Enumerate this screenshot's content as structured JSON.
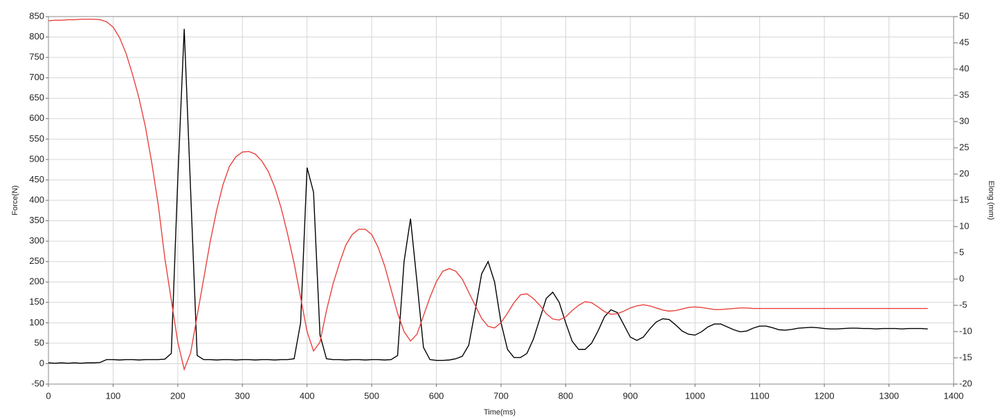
{
  "chart_data": {
    "type": "line",
    "x_label": "Time(ms)",
    "y_label": "Force(N)",
    "y2_label": "Elong (mm)",
    "x": [
      0,
      10,
      20,
      30,
      40,
      50,
      60,
      70,
      80,
      90,
      100,
      110,
      120,
      130,
      140,
      150,
      160,
      170,
      180,
      190,
      200,
      210,
      220,
      230,
      240,
      250,
      260,
      270,
      280,
      290,
      300,
      310,
      320,
      330,
      340,
      350,
      360,
      370,
      380,
      390,
      400,
      410,
      420,
      430,
      440,
      450,
      460,
      470,
      480,
      490,
      500,
      510,
      520,
      530,
      540,
      550,
      560,
      570,
      580,
      590,
      600,
      610,
      620,
      630,
      640,
      650,
      660,
      670,
      680,
      690,
      700,
      710,
      720,
      730,
      740,
      750,
      760,
      770,
      780,
      790,
      800,
      810,
      820,
      830,
      840,
      850,
      860,
      870,
      880,
      890,
      900,
      910,
      920,
      930,
      940,
      950,
      960,
      970,
      980,
      990,
      1000,
      1010,
      1020,
      1030,
      1040,
      1050,
      1060,
      1070,
      1080,
      1090,
      1100,
      1110,
      1120,
      1130,
      1140,
      1150,
      1160,
      1170,
      1180,
      1190,
      1200,
      1210,
      1220,
      1230,
      1240,
      1250,
      1260,
      1270,
      1280,
      1290,
      1300,
      1310,
      1320,
      1330,
      1340,
      1350,
      1360
    ],
    "series": [
      {
        "name": "Force",
        "color": "#000000",
        "axis": "y",
        "values": [
          2,
          1,
          2,
          1,
          2,
          1,
          2,
          2,
          3,
          10,
          10,
          9,
          10,
          10,
          9,
          10,
          10,
          10,
          11,
          25,
          450,
          820,
          420,
          20,
          10,
          10,
          9,
          10,
          10,
          9,
          10,
          10,
          9,
          10,
          10,
          9,
          10,
          10,
          12,
          100,
          480,
          420,
          70,
          12,
          10,
          10,
          9,
          10,
          10,
          9,
          10,
          10,
          9,
          10,
          20,
          250,
          355,
          200,
          40,
          10,
          8,
          8,
          9,
          12,
          18,
          45,
          130,
          220,
          250,
          200,
          100,
          35,
          15,
          15,
          25,
          60,
          110,
          160,
          175,
          150,
          100,
          55,
          35,
          35,
          50,
          80,
          115,
          132,
          125,
          95,
          65,
          57,
          65,
          85,
          102,
          110,
          108,
          95,
          80,
          72,
          70,
          78,
          90,
          97,
          97,
          90,
          83,
          78,
          80,
          87,
          92,
          92,
          88,
          83,
          82,
          84,
          87,
          88,
          89,
          88,
          86,
          85,
          85,
          86,
          87,
          87,
          86,
          86,
          85,
          86,
          86,
          86,
          85,
          86,
          86,
          86,
          85
        ]
      },
      {
        "name": "Elong",
        "color": "#e8413c",
        "axis": "y2",
        "values": [
          49.2,
          49.3,
          49.3,
          49.4,
          49.4,
          49.5,
          49.5,
          49.5,
          49.4,
          49,
          48,
          46,
          43,
          39,
          34.5,
          29,
          22,
          14,
          4,
          -4,
          -12,
          -17.2,
          -14,
          -7,
          0,
          7,
          13,
          18,
          21.5,
          23.3,
          24.2,
          24.3,
          23.8,
          22.5,
          20.5,
          17.5,
          13.5,
          8.5,
          3,
          -3.5,
          -10,
          -13.7,
          -12,
          -6,
          -1,
          3,
          6.5,
          8.5,
          9.5,
          9.5,
          8.5,
          6,
          2.5,
          -2,
          -6.5,
          -10,
          -11.8,
          -10.5,
          -7,
          -3.5,
          -0.5,
          1.5,
          2,
          1.5,
          0,
          -2.5,
          -5,
          -7.5,
          -9,
          -9.3,
          -8.3,
          -6.5,
          -4.5,
          -3,
          -2.8,
          -3.7,
          -5,
          -6.6,
          -7.6,
          -7.8,
          -7.2,
          -6,
          -5,
          -4.3,
          -4.5,
          -5.3,
          -6.2,
          -6.7,
          -6.6,
          -6.1,
          -5.5,
          -5.1,
          -4.9,
          -5.1,
          -5.5,
          -5.9,
          -6.1,
          -6,
          -5.7,
          -5.4,
          -5.3,
          -5.4,
          -5.6,
          -5.8,
          -5.8,
          -5.7,
          -5.6,
          -5.5,
          -5.5,
          -5.6,
          -5.6,
          -5.6,
          -5.6,
          -5.6,
          -5.6,
          -5.6,
          -5.6,
          -5.6,
          -5.6,
          -5.6,
          -5.6,
          -5.6,
          -5.6,
          -5.6,
          -5.6,
          -5.6,
          -5.6,
          -5.6,
          -5.6,
          -5.6,
          -5.6,
          -5.6,
          -5.6,
          -5.6,
          -5.6,
          -5.6,
          -5.6
        ]
      }
    ],
    "xlim": [
      0,
      1400
    ],
    "xticks": [
      0,
      100,
      200,
      300,
      400,
      500,
      600,
      700,
      800,
      900,
      1000,
      1100,
      1200,
      1300,
      1400
    ],
    "ylim": [
      -50,
      850
    ],
    "yticks": [
      -50,
      0,
      50,
      100,
      150,
      200,
      250,
      300,
      350,
      400,
      450,
      500,
      550,
      600,
      650,
      700,
      750,
      800,
      850
    ],
    "y2lim": [
      -20,
      50
    ],
    "y2ticks": [
      -20,
      -15,
      -10,
      -5,
      0,
      5,
      10,
      15,
      20,
      25,
      30,
      35,
      40,
      45,
      50
    ],
    "grid": true
  }
}
